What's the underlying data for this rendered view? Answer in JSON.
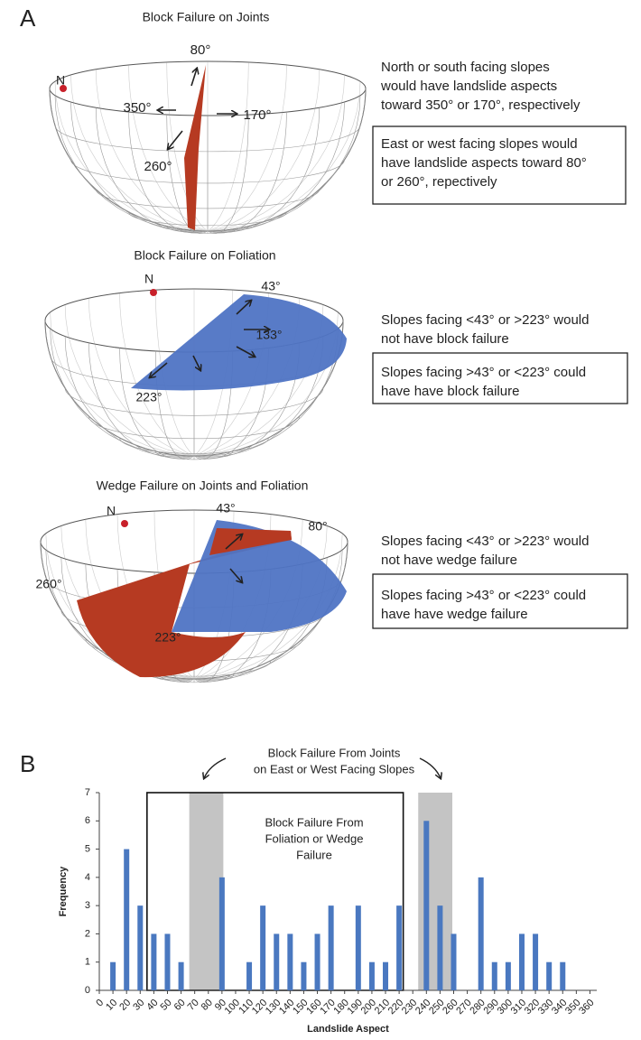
{
  "panel_a": {
    "label": "A",
    "diagrams": [
      {
        "title": "Block Failure on Joints",
        "north": "N",
        "angles": [
          "80°",
          "350°",
          "170°",
          "260°"
        ],
        "note": [
          "North or south facing slopes",
          "would have landslide aspects",
          "toward 350° or 170°, respectively"
        ],
        "boxed_note": [
          "East or west facing slopes would",
          "have landslide aspects toward 80°",
          "or 260°, repectively"
        ]
      },
      {
        "title": "Block Failure on Foliation",
        "north": "N",
        "angles": [
          "43°",
          "133°",
          "223°"
        ],
        "note": [
          "Slopes facing <43° or >223° would",
          "not have block failure"
        ],
        "boxed_note": [
          "Slopes facing >43° or <223° could",
          "have have block failure"
        ]
      },
      {
        "title": "Wedge Failure on Joints and Foliation",
        "north": "N",
        "angles": [
          "43°",
          "80°",
          "260°",
          "223°"
        ],
        "note": [
          "Slopes facing <43° or >223° would",
          "not have wedge failure"
        ],
        "boxed_note": [
          "Slopes facing >43° or <223° could",
          "have have wedge failure"
        ]
      }
    ]
  },
  "chart_data": {
    "type": "bar",
    "panel_label": "B",
    "annotations": [
      [
        "Block Failure From Joints",
        "on East or West Facing Slopes"
      ],
      [
        "Block Failure From",
        "Foliation or Wedge",
        "Failure"
      ]
    ],
    "x_label": "Landslide Aspect",
    "y_label": "Frequency",
    "x": [
      10,
      20,
      30,
      40,
      50,
      60,
      90,
      110,
      120,
      130,
      140,
      150,
      160,
      170,
      190,
      200,
      210,
      220,
      240,
      250,
      260,
      280,
      290,
      300,
      310,
      320,
      330,
      340
    ],
    "values": [
      1,
      5,
      3,
      2,
      2,
      1,
      4,
      1,
      3,
      2,
      2,
      1,
      2,
      3,
      3,
      1,
      1,
      3,
      6,
      3,
      2,
      4,
      1,
      1,
      2,
      2,
      1,
      1
    ],
    "color": "#4a78c0",
    "shaded_ranges": [
      [
        66,
        91
      ],
      [
        234,
        259
      ]
    ],
    "box_range": [
      35,
      223
    ],
    "xlim": [
      0,
      365
    ],
    "ylim": [
      0,
      7
    ],
    "xticks": [
      0,
      10,
      20,
      30,
      40,
      50,
      60,
      70,
      80,
      90,
      100,
      110,
      120,
      130,
      140,
      150,
      160,
      170,
      180,
      190,
      200,
      210,
      220,
      230,
      240,
      250,
      260,
      270,
      280,
      290,
      300,
      310,
      320,
      330,
      340,
      350,
      360
    ],
    "yticks": [
      0,
      1,
      2,
      3,
      4,
      5,
      6,
      7
    ]
  }
}
